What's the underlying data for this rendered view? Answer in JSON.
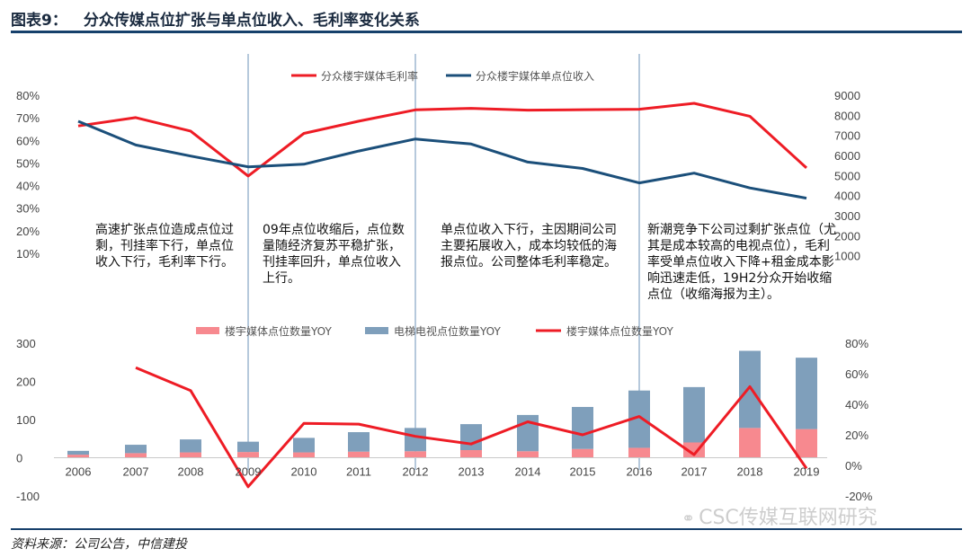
{
  "figure": {
    "label": "图表9：",
    "title": "分众传媒点位扩张与单点位收入、毛利率变化关系",
    "source": "资料来源：公司公告，中信建投",
    "watermark": "CSC传媒互联网研究"
  },
  "colors": {
    "red": "#ee1c25",
    "navy": "#1b4f7a",
    "pink": "#f7898f",
    "steel": "#7f9fbb",
    "vline": "#6e93b8"
  },
  "chart_data": [
    {
      "type": "line",
      "x": [
        2006,
        2007,
        2008,
        2009,
        2010,
        2011,
        2012,
        2013,
        2014,
        2015,
        2016,
        2017,
        2018,
        2019
      ],
      "ylim_left": [
        0,
        0.8
      ],
      "left_ticks": [
        "80%",
        "70%",
        "60%",
        "50%",
        "40%",
        "30%",
        "20%",
        "10%"
      ],
      "left_tick_values": [
        0.8,
        0.7,
        0.6,
        0.5,
        0.4,
        0.3,
        0.2,
        0.1
      ],
      "ylim_right": [
        0,
        9000
      ],
      "right_ticks": [
        "9000",
        "8000",
        "7000",
        "6000",
        "5000",
        "4000",
        "3000",
        "2000",
        "1000"
      ],
      "right_tick_values": [
        9000,
        8000,
        7000,
        6000,
        5000,
        4000,
        3000,
        2000,
        1000
      ],
      "series": [
        {
          "name": "分众楼宇媒体毛利率",
          "axis": "left",
          "color": "#ee1c25",
          "values": [
            0.664,
            0.701,
            0.641,
            0.442,
            0.631,
            0.685,
            0.735,
            0.742,
            0.734,
            0.736,
            0.738,
            0.764,
            0.707,
            0.478
          ]
        },
        {
          "name": "分众楼宇媒体单点位收入",
          "axis": "right",
          "color": "#1b4f7a",
          "values": [
            7700,
            6520,
            5970,
            5430,
            5560,
            6220,
            6820,
            6570,
            5670,
            5350,
            4630,
            5120,
            4380,
            3870
          ]
        }
      ],
      "vertical_markers": [
        2009,
        2012,
        2016
      ],
      "annotations": [
        "高速扩张点位造成点位过剩，刊挂率下行，单点位收入下行，毛利率下行。",
        "09年点位收缩后，点位数量随经济复苏平稳扩张，刊挂率回升，单点位收入上行。",
        "单点位收入下行，主因期间公司主要拓展收入，成本均较低的海报点位。公司整体毛利率稳定。",
        "新潮竞争下公司过剩扩张点位（尤其是成本较高的电视点位），毛利率受单点位收入下降+租金成本影响迅速走低，19H2分众开始收缩点位（收缩海报为主）。"
      ]
    },
    {
      "type": "bar",
      "categories": [
        "2006",
        "2007",
        "2008",
        "2009",
        "2010",
        "2011",
        "2012",
        "2013",
        "2014",
        "2015",
        "2016",
        "2017",
        "2018",
        "2019"
      ],
      "ylim_left": [
        -100,
        300
      ],
      "left_ticks": [
        "300",
        "200",
        "100",
        "0",
        "-100"
      ],
      "left_tick_values": [
        300,
        200,
        100,
        0,
        -100
      ],
      "ylim_right": [
        -0.2,
        0.8
      ],
      "right_ticks": [
        "80%",
        "60%",
        "40%",
        "20%",
        "0%",
        "-20%"
      ],
      "right_tick_values": [
        0.8,
        0.6,
        0.4,
        0.2,
        0,
        -0.2
      ],
      "series": [
        {
          "name": "楼宇媒体点位数量YOY",
          "type": "bar",
          "color": "#f7898f",
          "values": [
            8,
            12,
            14,
            15,
            14,
            16,
            17,
            20,
            17,
            23,
            26,
            40,
            78,
            75
          ]
        },
        {
          "name": "电梯电视点位数量YOY",
          "type": "bar",
          "color": "#7f9fbb",
          "values": [
            10,
            22,
            34,
            27,
            38,
            51,
            61,
            68,
            95,
            110,
            150,
            145,
            202,
            187
          ]
        },
        {
          "name": "楼宇媒体点位数量YOY",
          "type": "line",
          "axis": "right",
          "color": "#ee1c25",
          "values": [
            null,
            0.64,
            0.49,
            -0.14,
            0.275,
            0.27,
            0.19,
            0.14,
            0.285,
            0.2,
            0.32,
            0.07,
            0.515,
            -0.02
          ]
        }
      ]
    }
  ]
}
